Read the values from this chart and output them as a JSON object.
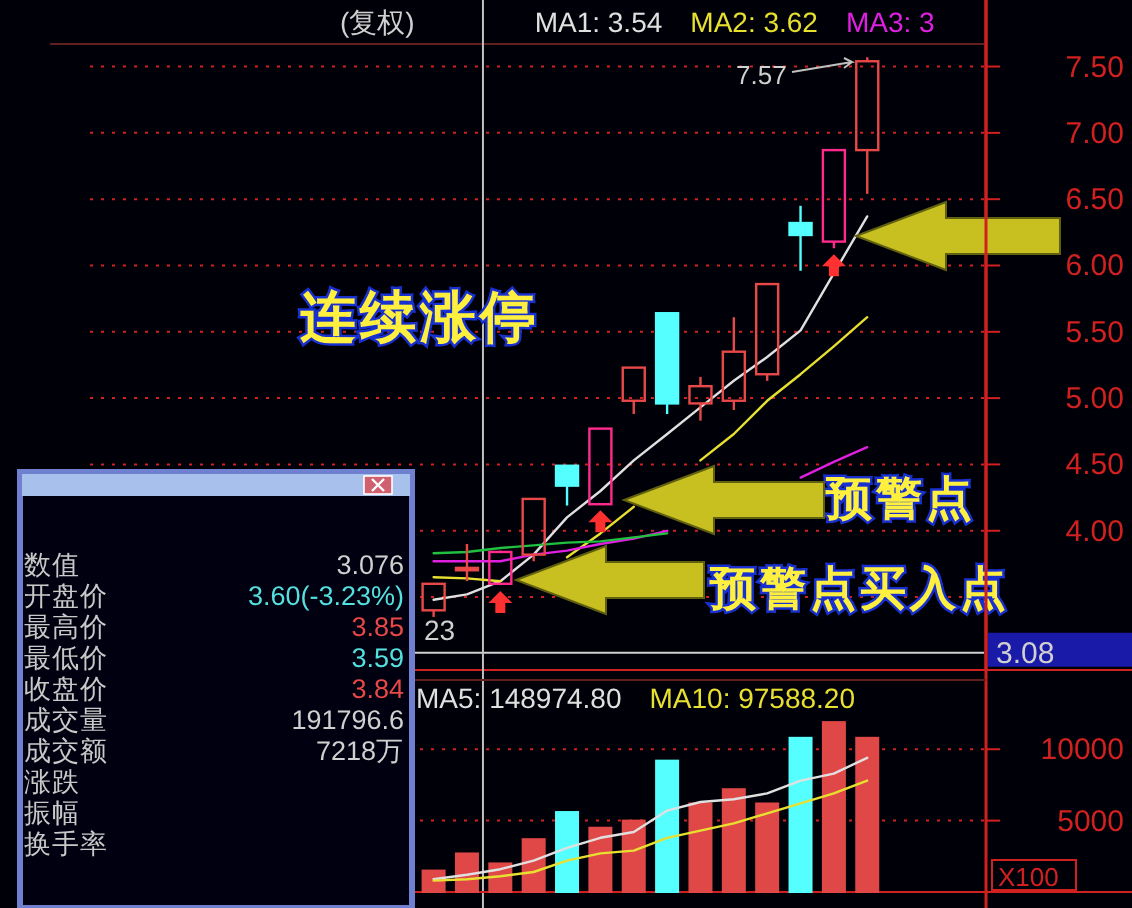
{
  "chart_data": [
    {
      "type": "candlestick",
      "title": "(复权)",
      "legend": "top right",
      "grid": "y",
      "categories": [
        null,
        null,
        null,
        null,
        null,
        null,
        null,
        null,
        null,
        null,
        null,
        null,
        null,
        null,
        null,
        null,
        null,
        null,
        null,
        null,
        null,
        null,
        null,
        null,
        null,
        null,
        null,
        null
      ],
      "ohlc": [
        null,
        null,
        null,
        null,
        null,
        null,
        null,
        null,
        null,
        null,
        null,
        [
          3.4,
          3.6,
          3.35,
          3.6
        ],
        [
          3.72,
          3.9,
          3.62,
          3.72
        ],
        [
          3.6,
          3.85,
          3.59,
          3.84
        ],
        [
          3.82,
          4.24,
          3.77,
          4.24
        ],
        [
          4.49,
          4.49,
          4.19,
          4.34
        ],
        [
          4.2,
          4.77,
          4.2,
          4.77
        ],
        [
          4.98,
          5.23,
          4.88,
          5.23
        ],
        [
          5.64,
          5.64,
          4.88,
          4.96
        ],
        [
          4.96,
          5.16,
          4.83,
          5.09
        ],
        [
          4.98,
          5.61,
          4.91,
          5.35
        ],
        [
          5.18,
          5.86,
          5.13,
          5.86
        ],
        [
          6.32,
          6.45,
          5.96,
          6.23
        ],
        [
          6.18,
          6.87,
          6.13,
          6.87
        ],
        [
          6.87,
          7.57,
          6.54,
          7.54
        ],
        null,
        null,
        null
      ],
      "colors": [
        null,
        null,
        null,
        null,
        null,
        null,
        null,
        null,
        null,
        null,
        null,
        "#e84848",
        "#e84848",
        "#ff2a8c",
        "#e84848",
        "#55ffff",
        "#ff2a8c",
        "#e84848",
        "#55ffff",
        "#e84848",
        "#e84848",
        "#e84848",
        "#55ffff",
        "#ff2a8c",
        "#e84848",
        null,
        null,
        null
      ],
      "series": [
        {
          "type": "line",
          "name": "MA1: 3.54",
          "color": "#e0e0e0",
          "values": [
            null,
            null,
            null,
            null,
            null,
            null,
            null,
            null,
            null,
            null,
            null,
            3.48,
            3.52,
            3.62,
            3.82,
            4.1,
            4.3,
            4.53,
            4.73,
            4.93,
            5.13,
            5.31,
            5.51,
            5.94,
            6.37,
            null,
            null,
            null
          ]
        },
        {
          "type": "line",
          "name": "MA2: 3.62",
          "color": "#e8e030",
          "values": [
            null,
            null,
            null,
            null,
            null,
            null,
            null,
            null,
            null,
            null,
            null,
            3.65,
            3.64,
            3.62,
            null,
            3.8,
            3.98,
            4.18,
            null,
            4.53,
            4.73,
            4.98,
            5.18,
            5.39,
            5.61,
            null,
            null,
            null
          ]
        },
        {
          "type": "line",
          "name": "MA3: 3",
          "color": "#e020e0",
          "values": [
            null,
            null,
            null,
            null,
            null,
            null,
            null,
            null,
            null,
            null,
            null,
            3.77,
            3.77,
            3.77,
            3.82,
            3.85,
            3.9,
            3.94,
            4.0,
            null,
            null,
            null,
            4.4,
            4.52,
            4.63,
            null,
            null,
            null
          ]
        },
        {
          "type": "line",
          "color": "#20c040",
          "values": [
            null,
            null,
            null,
            null,
            null,
            null,
            null,
            null,
            null,
            null,
            null,
            3.83,
            3.84,
            3.87,
            3.89,
            3.91,
            3.92,
            3.95,
            3.98,
            null,
            null,
            null,
            null,
            null,
            null,
            null,
            null,
            null
          ]
        }
      ],
      "ylim": [
        2.95,
        7.67
      ],
      "yticks": [
        {
          "value": 3.5,
          "label": null
        },
        {
          "value": 4.0,
          "label": "4.00"
        },
        {
          "value": 4.5,
          "label": "4.50"
        },
        {
          "value": 5.0,
          "label": "5.00"
        },
        {
          "value": 5.5,
          "label": "5.50"
        },
        {
          "value": 6.0,
          "label": "6.00"
        },
        {
          "value": 6.5,
          "label": "6.50"
        },
        {
          "value": 7.0,
          "label": "7.00"
        },
        {
          "value": 7.5,
          "label": "7.50"
        }
      ],
      "ref_lines": [
        {
          "axis": "y",
          "value": 3.08,
          "label": "3.08",
          "color": "#d0d0d0"
        }
      ],
      "annotations": [
        "7.57",
        "连续涨停",
        "预警点",
        "预警点买入点",
        "23"
      ]
    },
    {
      "type": "bar",
      "legend": "top right",
      "grid": "y",
      "categories": [
        null,
        null,
        null,
        null,
        null,
        null,
        null,
        null,
        null,
        null,
        null,
        null,
        null,
        null,
        null,
        null,
        null,
        null,
        null,
        null,
        null,
        null,
        null,
        null,
        null,
        null,
        null,
        null
      ],
      "series": [
        {
          "type": "bar",
          "values": [
            null,
            null,
            null,
            null,
            null,
            null,
            null,
            null,
            null,
            null,
            null,
            1500,
            2700,
            2000,
            3700,
            5600,
            4500,
            5000,
            9200,
            6200,
            7200,
            6200,
            10800,
            11900,
            10800,
            null,
            null,
            null
          ],
          "colors": [
            null,
            null,
            null,
            null,
            null,
            null,
            null,
            null,
            null,
            null,
            null,
            "#e04848",
            "#e04848",
            "#e04848",
            "#e04848",
            "#55ffff",
            "#e04848",
            "#e04848",
            "#55ffff",
            "#e04848",
            "#e04848",
            "#e04848",
            "#55ffff",
            "#e04848",
            "#e04848",
            null,
            null,
            null
          ]
        },
        {
          "type": "line",
          "name": "MA5: 148974.80",
          "color": "#e0e0e0",
          "values": [
            null,
            null,
            null,
            null,
            null,
            null,
            null,
            null,
            null,
            null,
            null,
            900,
            1200,
            1600,
            2200,
            3100,
            3800,
            4200,
            5700,
            6300,
            6500,
            6900,
            7800,
            8300,
            9400,
            null,
            null,
            null
          ]
        },
        {
          "type": "line",
          "name": "MA10: 97588.20",
          "color": "#e8e030",
          "values": [
            null,
            null,
            null,
            null,
            null,
            null,
            null,
            null,
            null,
            null,
            null,
            800,
            900,
            1100,
            1400,
            2200,
            2700,
            2900,
            3800,
            4300,
            4800,
            5500,
            6200,
            6900,
            7800,
            null,
            null,
            null
          ]
        }
      ],
      "ylim": [
        0,
        14850
      ],
      "yticks": [
        5000,
        10000
      ],
      "annotations": [
        "X100"
      ]
    },
    {
      "type": "other",
      "categories": [
        "数值",
        "开盘价",
        "最高价",
        "最低价",
        "收盘价",
        "成交量",
        "成交额",
        "涨跌",
        "振幅",
        "换手率"
      ],
      "value_labels": [
        "3.076",
        "3.60(-3.23%)",
        "3.85",
        "3.59",
        "3.84",
        "191796.6",
        "7218万",
        null,
        null,
        null
      ],
      "colors": [
        "#d0d0d0",
        "#55e0e0",
        "#e84848",
        "#55e0e0",
        "#e84848",
        "#d0d0d0",
        "#d0d0d0"
      ]
    }
  ]
}
